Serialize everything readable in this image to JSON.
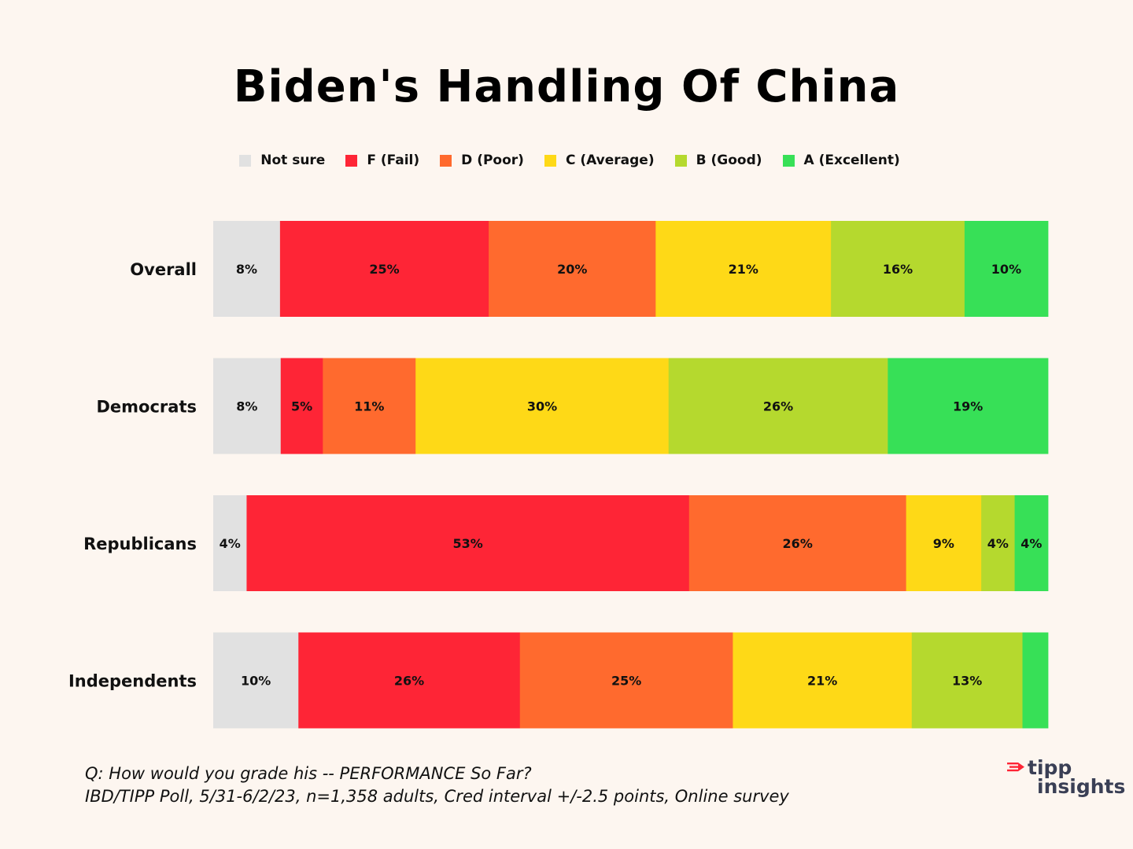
{
  "colors": {
    "background": "#fdf6f0",
    "not_sure": "#e1e1e1",
    "fail": "#fe2536",
    "poor": "#ff6a2e",
    "average": "#fed917",
    "good": "#b5d92e",
    "excellent": "#37e057"
  },
  "chart_data": {
    "type": "bar",
    "orientation": "horizontal-stacked-100",
    "title": "Biden's Handling Of China",
    "categories": [
      "Overall",
      "Democrats",
      "Republicans",
      "Independents"
    ],
    "series": [
      {
        "name": "Not sure",
        "color": "#e1e1e1",
        "values": [
          8,
          8,
          4,
          10
        ],
        "labels": [
          "8%",
          "8%",
          "4%",
          "10%"
        ]
      },
      {
        "name": "F (Fail)",
        "color": "#fe2536",
        "values": [
          25,
          5,
          53,
          26
        ],
        "labels": [
          "25%",
          "5%",
          "53%",
          "26%"
        ]
      },
      {
        "name": "D (Poor)",
        "color": "#ff6a2e",
        "values": [
          20,
          11,
          26,
          25
        ],
        "labels": [
          "20%",
          "11%",
          "26%",
          "25%"
        ]
      },
      {
        "name": "C (Average)",
        "color": "#fed917",
        "values": [
          21,
          30,
          9,
          21
        ],
        "labels": [
          "21%",
          "30%",
          "9%",
          "21%"
        ]
      },
      {
        "name": "B (Good)",
        "color": "#b5d92e",
        "values": [
          16,
          26,
          4,
          13
        ],
        "labels": [
          "16%",
          "26%",
          "4%",
          "13%"
        ]
      },
      {
        "name": "A (Excellent)",
        "color": "#37e057",
        "values": [
          10,
          19,
          4,
          3
        ],
        "labels": [
          "10%",
          "19%",
          "4%",
          ""
        ]
      }
    ],
    "legend": "top-center",
    "grid": false
  },
  "footnote": {
    "question": "Q:  How would you grade his -- PERFORMANCE So Far?",
    "source": "IBD/TIPP Poll, 5/31-6/2/23, n=1,358 adults, Cred interval +/-2.5 points, Online survey"
  },
  "logo": {
    "line1": "tipp",
    "line2": "insights",
    "icon": "tipp-flag-icon"
  }
}
